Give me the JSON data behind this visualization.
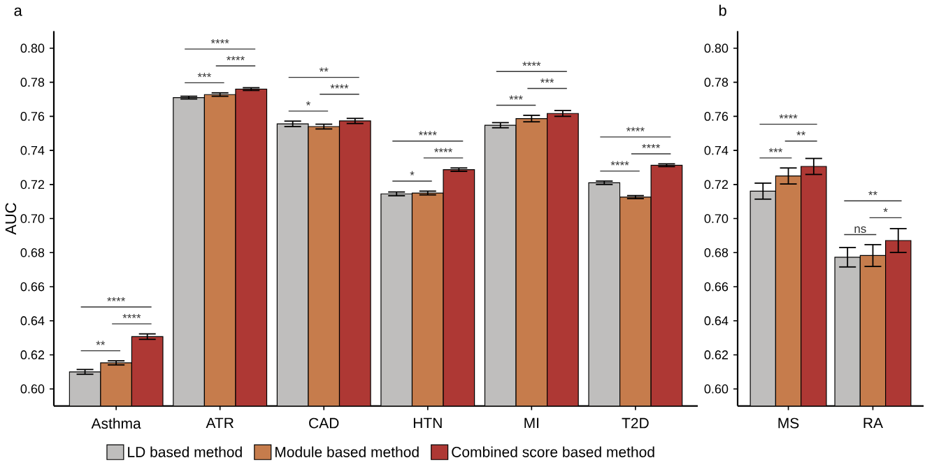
{
  "chart_data": [
    {
      "type": "bar",
      "title": "a",
      "ylabel": "AUC",
      "categories": [
        "Asthma",
        "ATR",
        "CAD",
        "HTN",
        "MI",
        "T2D"
      ],
      "series": [
        {
          "name": "LD based method",
          "color": "#bfbebd",
          "values": [
            0.61,
            0.771,
            0.7556,
            0.7145,
            0.7548,
            0.721
          ],
          "errors": [
            0.0014,
            0.0008,
            0.0016,
            0.0011,
            0.0015,
            0.001
          ]
        },
        {
          "name": "Module based method",
          "color": "#c67c4c",
          "values": [
            0.6153,
            0.7728,
            0.754,
            0.715,
            0.7587,
            0.7126
          ],
          "errors": [
            0.0012,
            0.001,
            0.0014,
            0.0011,
            0.0019,
            0.0009
          ]
        },
        {
          "name": "Combined score based method",
          "color": "#ae3834",
          "values": [
            0.6307,
            0.776,
            0.7573,
            0.7287,
            0.7617,
            0.7313
          ],
          "errors": [
            0.0016,
            0.0008,
            0.0015,
            0.001,
            0.0017,
            0.0008
          ]
        }
      ],
      "ylim": [
        0.59,
        0.81
      ],
      "yticks": [
        {
          "value": 0.6,
          "label": "0.60"
        },
        {
          "value": 0.62,
          "label": "0.62"
        },
        {
          "value": 0.64,
          "label": "0.64"
        },
        {
          "value": 0.66,
          "label": "0.66"
        },
        {
          "value": 0.68,
          "label": "0.68"
        },
        {
          "value": 0.7,
          "label": "0.70"
        },
        {
          "value": 0.72,
          "label": "0.72"
        },
        {
          "value": 0.74,
          "label": "0.74"
        },
        {
          "value": 0.76,
          "label": "0.76"
        },
        {
          "value": 0.78,
          "label": "0.78"
        },
        {
          "value": 0.8,
          "label": "0.80"
        }
      ],
      "legend": "bottom",
      "annotations": [
        "**",
        "****",
        "****",
        "***",
        "****",
        "****",
        "*",
        "****",
        "**",
        "*",
        "****",
        "****",
        "***",
        "***",
        "****",
        "****",
        "****",
        "****"
      ]
    },
    {
      "type": "bar",
      "title": "b",
      "categories": [
        "MS",
        "RA"
      ],
      "series": [
        {
          "color": "#bfbebd",
          "values": [
            0.7161,
            0.6773
          ],
          "errors": [
            0.0047,
            0.0057
          ]
        },
        {
          "color": "#c67c4c",
          "values": [
            0.725,
            0.6783
          ],
          "errors": [
            0.0047,
            0.0064
          ]
        },
        {
          "color": "#ae3834",
          "values": [
            0.7306,
            0.6871
          ],
          "errors": [
            0.0047,
            0.007
          ]
        }
      ],
      "ylim": [
        0.59,
        0.81
      ],
      "yticks": [
        {
          "value": 0.6,
          "label": "0.60"
        },
        {
          "value": 0.62,
          "label": "0.62"
        },
        {
          "value": 0.64,
          "label": "0.64"
        },
        {
          "value": 0.66,
          "label": "0.66"
        },
        {
          "value": 0.68,
          "label": "0.68"
        },
        {
          "value": 0.7,
          "label": "0.70"
        },
        {
          "value": 0.72,
          "label": "0.72"
        },
        {
          "value": 0.74,
          "label": "0.74"
        },
        {
          "value": 0.76,
          "label": "0.76"
        },
        {
          "value": 0.78,
          "label": "0.78"
        },
        {
          "value": 0.8,
          "label": "0.80"
        }
      ],
      "annotations": [
        "***",
        "**",
        "****",
        "ns",
        "*",
        "**"
      ]
    }
  ]
}
